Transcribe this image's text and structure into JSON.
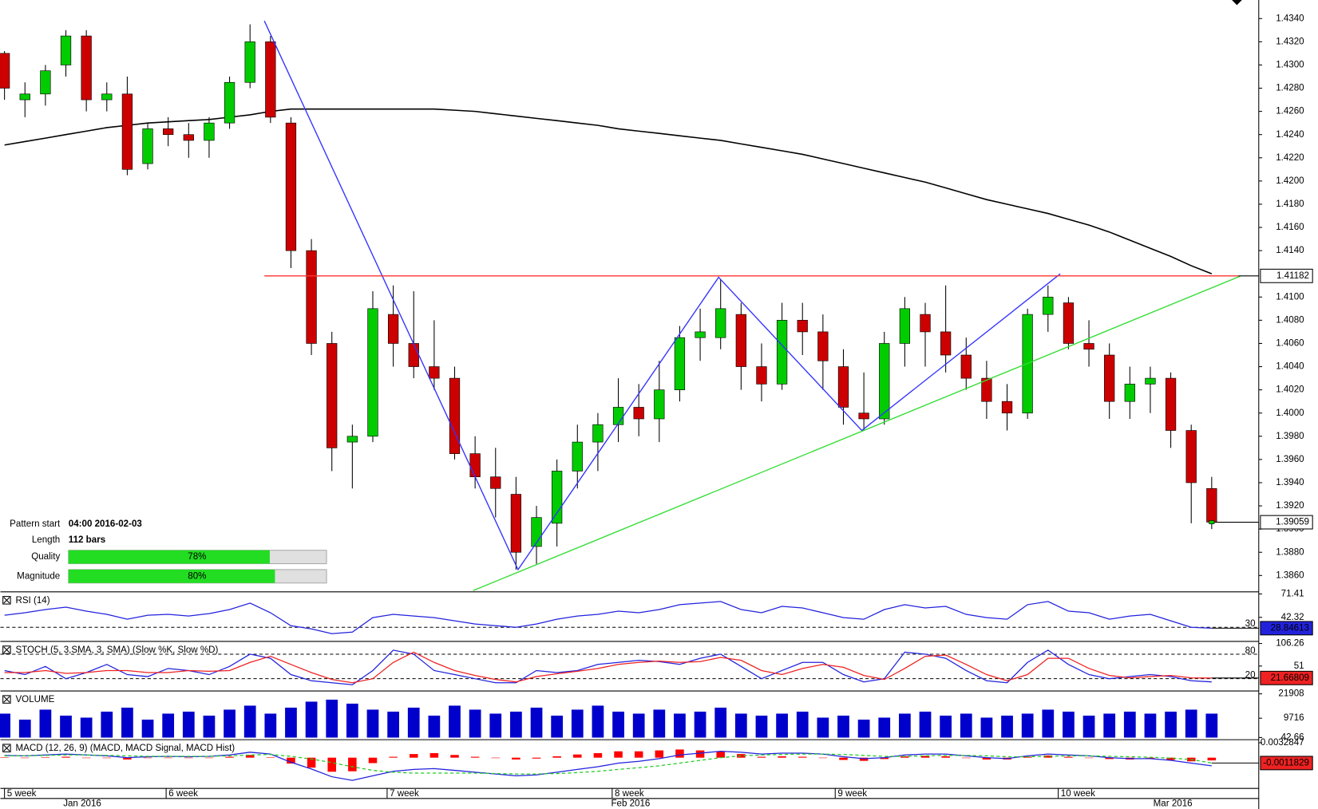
{
  "chart_data": [
    {
      "type": "candlestick",
      "xlim": [
        -0.2,
        61.3
      ],
      "ylim": [
        1.3847,
        1.4356
      ],
      "yticks": [
        {
          "value": 1.386,
          "label": "1.3860"
        },
        {
          "value": 1.388,
          "label": "1.3880"
        },
        {
          "value": 1.39,
          "label": "1.3900"
        },
        {
          "value": 1.392,
          "label": "1.3920"
        },
        {
          "value": 1.394,
          "label": "1.3940"
        },
        {
          "value": 1.396,
          "label": "1.3960"
        },
        {
          "value": 1.398,
          "label": "1.3980"
        },
        {
          "value": 1.4,
          "label": "1.4000"
        },
        {
          "value": 1.402,
          "label": "1.4020"
        },
        {
          "value": 1.404,
          "label": "1.4040"
        },
        {
          "value": 1.406,
          "label": "1.4060"
        },
        {
          "value": 1.408,
          "label": "1.4080"
        },
        {
          "value": 1.41,
          "label": "1.4100"
        },
        {
          "value": 1.414,
          "label": "1.4140"
        },
        {
          "value": 1.416,
          "label": "1.4160"
        },
        {
          "value": 1.418,
          "label": "1.4180"
        },
        {
          "value": 1.42,
          "label": "1.4200"
        },
        {
          "value": 1.422,
          "label": "1.4220"
        },
        {
          "value": 1.424,
          "label": "1.4240"
        },
        {
          "value": 1.426,
          "label": "1.4260"
        },
        {
          "value": 1.428,
          "label": "1.4280"
        },
        {
          "value": 1.43,
          "label": "1.4300"
        },
        {
          "value": 1.432,
          "label": "1.4320"
        },
        {
          "value": 1.434,
          "label": "1.4340"
        }
      ],
      "xticks": [
        {
          "value": 0,
          "label": "5 week"
        },
        {
          "value": 7.9,
          "label": "6 week"
        },
        {
          "value": 18.7,
          "label": "7 week"
        },
        {
          "value": 29.7,
          "label": "8 week"
        },
        {
          "value": 40.6,
          "label": "9 week"
        },
        {
          "value": 51.5,
          "label": "10 week"
        }
      ],
      "months": [
        {
          "value": 3.8,
          "label": "Jan 2016"
        },
        {
          "value": 30.6,
          "label": "Feb 2016"
        },
        {
          "value": 57.1,
          "label": "Mar 2016"
        }
      ],
      "up_color": "#00cc00",
      "down_color": "#cc0000",
      "candles": [
        [
          1.431,
          1.4312,
          1.427,
          1.428
        ],
        [
          1.427,
          1.4285,
          1.4255,
          1.4275
        ],
        [
          1.4275,
          1.43,
          1.4265,
          1.4295
        ],
        [
          1.43,
          1.433,
          1.429,
          1.4325
        ],
        [
          1.4325,
          1.433,
          1.426,
          1.427
        ],
        [
          1.427,
          1.4285,
          1.426,
          1.4275
        ],
        [
          1.4275,
          1.429,
          1.4205,
          1.421
        ],
        [
          1.4215,
          1.425,
          1.421,
          1.4245
        ],
        [
          1.4245,
          1.4255,
          1.423,
          1.424
        ],
        [
          1.424,
          1.425,
          1.422,
          1.4235
        ],
        [
          1.4235,
          1.4255,
          1.422,
          1.425
        ],
        [
          1.425,
          1.429,
          1.4245,
          1.4285
        ],
        [
          1.4285,
          1.4335,
          1.428,
          1.432
        ],
        [
          1.432,
          1.4325,
          1.425,
          1.4255
        ],
        [
          1.425,
          1.4255,
          1.4125,
          1.414
        ],
        [
          1.414,
          1.415,
          1.405,
          1.406
        ],
        [
          1.406,
          1.407,
          1.395,
          1.397
        ],
        [
          1.3975,
          1.399,
          1.3935,
          1.398
        ],
        [
          1.398,
          1.4105,
          1.3975,
          1.409
        ],
        [
          1.4085,
          1.411,
          1.404,
          1.406
        ],
        [
          1.406,
          1.4105,
          1.403,
          1.404
        ],
        [
          1.404,
          1.408,
          1.402,
          1.403
        ],
        [
          1.403,
          1.404,
          1.396,
          1.3965
        ],
        [
          1.3965,
          1.398,
          1.3935,
          1.3945
        ],
        [
          1.3945,
          1.397,
          1.391,
          1.3935
        ],
        [
          1.393,
          1.3945,
          1.3865,
          1.388
        ],
        [
          1.3885,
          1.392,
          1.387,
          1.391
        ],
        [
          1.3905,
          1.396,
          1.3885,
          1.395
        ],
        [
          1.395,
          1.399,
          1.3935,
          1.3975
        ],
        [
          1.3975,
          1.4,
          1.395,
          1.399
        ],
        [
          1.399,
          1.403,
          1.3975,
          1.4005
        ],
        [
          1.4005,
          1.4025,
          1.398,
          1.3995
        ],
        [
          1.3995,
          1.4045,
          1.3975,
          1.402
        ],
        [
          1.402,
          1.4075,
          1.401,
          1.4065
        ],
        [
          1.4065,
          1.409,
          1.4045,
          1.407
        ],
        [
          1.4065,
          1.4115,
          1.4055,
          1.409
        ],
        [
          1.4085,
          1.4095,
          1.402,
          1.404
        ],
        [
          1.404,
          1.406,
          1.401,
          1.4025
        ],
        [
          1.4025,
          1.4095,
          1.402,
          1.408
        ],
        [
          1.408,
          1.4095,
          1.405,
          1.407
        ],
        [
          1.407,
          1.4085,
          1.402,
          1.4045
        ],
        [
          1.404,
          1.4055,
          1.399,
          1.4005
        ],
        [
          1.4,
          1.4035,
          1.3985,
          1.3995
        ],
        [
          1.3995,
          1.407,
          1.399,
          1.406
        ],
        [
          1.406,
          1.41,
          1.404,
          1.409
        ],
        [
          1.4085,
          1.4095,
          1.404,
          1.407
        ],
        [
          1.407,
          1.411,
          1.4035,
          1.405
        ],
        [
          1.405,
          1.4065,
          1.402,
          1.403
        ],
        [
          1.403,
          1.4045,
          1.3995,
          1.401
        ],
        [
          1.401,
          1.4025,
          1.3985,
          1.4
        ],
        [
          1.4,
          1.409,
          1.3995,
          1.4085
        ],
        [
          1.4085,
          1.411,
          1.407,
          1.41
        ],
        [
          1.4095,
          1.41,
          1.4055,
          1.406
        ],
        [
          1.406,
          1.408,
          1.404,
          1.4055
        ],
        [
          1.405,
          1.406,
          1.3995,
          1.401
        ],
        [
          1.401,
          1.404,
          1.3995,
          1.4025
        ],
        [
          1.4025,
          1.404,
          1.4,
          1.403
        ],
        [
          1.403,
          1.4035,
          1.397,
          1.3985
        ],
        [
          1.3985,
          1.399,
          1.3905,
          1.394
        ],
        [
          1.3935,
          1.3945,
          1.39,
          1.3906
        ]
      ],
      "ma": {
        "color": "#000000",
        "values": [
          1.4231,
          1.4234,
          1.4237,
          1.424,
          1.4243,
          1.4246,
          1.4248,
          1.425,
          1.4251,
          1.4252,
          1.4253,
          1.4255,
          1.4257,
          1.426,
          1.4262,
          1.4262,
          1.4262,
          1.4262,
          1.4262,
          1.4262,
          1.4262,
          1.4262,
          1.4261,
          1.426,
          1.4258,
          1.4256,
          1.4254,
          1.4252,
          1.425,
          1.4248,
          1.4245,
          1.4243,
          1.4241,
          1.4239,
          1.4237,
          1.4235,
          1.4232,
          1.4229,
          1.4226,
          1.4223,
          1.4219,
          1.4215,
          1.4211,
          1.4207,
          1.4203,
          1.4199,
          1.4194,
          1.4189,
          1.4184,
          1.418,
          1.4176,
          1.4172,
          1.4167,
          1.4162,
          1.4156,
          1.4149,
          1.4142,
          1.4135,
          1.4127,
          1.412
        ]
      },
      "zigzag": {
        "color": "#3333ff",
        "x": [
          12.7,
          25.1,
          34.9,
          41.9,
          51.6
        ],
        "y": [
          1.4338,
          1.3865,
          1.4117,
          1.3985,
          1.412
        ]
      },
      "support": {
        "color": "#33dd33",
        "x": [
          22.9,
          60.4
        ],
        "y": [
          1.3847,
          1.4118
        ]
      },
      "resistance": {
        "color": "#ff3333",
        "x": [
          12.7,
          60.3
        ],
        "value": 1.41182
      },
      "last_price": 1.39059,
      "info": [
        {
          "label": "Pattern start",
          "text": "04:00 2016-02-03"
        },
        {
          "label": "Length",
          "text": "112 bars"
        },
        {
          "label": "Quality",
          "value": 78,
          "value_label": "78%"
        },
        {
          "label": "Magnitude",
          "value": 80,
          "value_label": "80%"
        }
      ]
    },
    {
      "type": "line",
      "title": "RSI (14)",
      "ylim": [
        14,
        71.41
      ],
      "yticks": [
        71.41,
        42.32
      ],
      "levels": [
        30
      ],
      "last_label": 28.84613,
      "last_color": "#2222dd",
      "series": [
        {
          "color": "#2222dd",
          "values": [
            45,
            48,
            52,
            55,
            50,
            46,
            40,
            45,
            46,
            44,
            47,
            52,
            60,
            48,
            32,
            28,
            22,
            24,
            42,
            46,
            44,
            42,
            38,
            34,
            32,
            30,
            34,
            40,
            44,
            46,
            50,
            48,
            52,
            58,
            60,
            62,
            52,
            48,
            56,
            54,
            48,
            42,
            40,
            52,
            58,
            54,
            56,
            46,
            42,
            40,
            58,
            62,
            50,
            48,
            40,
            44,
            46,
            38,
            30,
            28.84613
          ]
        }
      ]
    },
    {
      "type": "line",
      "title": "STOCH (5, 3,SMA, 3, SMA) (Slow %K, Slow %D)",
      "ylim": [
        -5,
        106.26
      ],
      "yticks": [
        106.26,
        51
      ],
      "levels": [
        80,
        20
      ],
      "last_label": 21.66809,
      "last_color": "#ee2222",
      "series": [
        {
          "color": "#2222dd",
          "values": [
            40,
            30,
            50,
            20,
            35,
            55,
            30,
            25,
            45,
            40,
            30,
            50,
            80,
            70,
            30,
            15,
            10,
            5,
            40,
            90,
            80,
            40,
            30,
            20,
            10,
            10,
            40,
            35,
            40,
            55,
            60,
            65,
            62,
            55,
            70,
            80,
            50,
            20,
            40,
            60,
            60,
            30,
            12,
            20,
            85,
            80,
            70,
            40,
            15,
            10,
            60,
            90,
            55,
            30,
            20,
            25,
            30,
            25,
            15,
            12
          ]
        },
        {
          "color": "#ee2222",
          "values": [
            35,
            35,
            40,
            33,
            35,
            40,
            40,
            35,
            35,
            40,
            38,
            40,
            60,
            75,
            55,
            35,
            18,
            10,
            20,
            60,
            85,
            60,
            40,
            28,
            18,
            12,
            25,
            32,
            38,
            45,
            55,
            60,
            63,
            60,
            62,
            72,
            65,
            40,
            30,
            45,
            55,
            48,
            28,
            18,
            45,
            75,
            78,
            55,
            30,
            15,
            30,
            70,
            70,
            45,
            28,
            22,
            25,
            28,
            22,
            21.66809
          ]
        }
      ]
    },
    {
      "type": "bar",
      "title": "VOLUME",
      "ylim": [
        0,
        22300
      ],
      "yticks": [
        21908,
        9716,
        42.66
      ],
      "color": "#0000cc",
      "values": [
        12000,
        9000,
        14000,
        11000,
        10000,
        13000,
        15000,
        9000,
        12000,
        13000,
        11000,
        14000,
        16000,
        12000,
        15000,
        18000,
        19000,
        17000,
        14000,
        13000,
        15000,
        11000,
        16000,
        14000,
        12000,
        13000,
        15000,
        11000,
        14000,
        16000,
        13000,
        12000,
        14000,
        12000,
        13000,
        15000,
        12000,
        11000,
        12000,
        13000,
        10000,
        11000,
        9000,
        10000,
        12000,
        13000,
        11000,
        12000,
        10000,
        11000,
        12000,
        14000,
        13000,
        11000,
        12000,
        13000,
        12000,
        13000,
        14000,
        12000
      ]
    },
    {
      "type": "line",
      "title": "MACD (12, 26, 9) (MACD, MACD Signal, MACD Hist)",
      "ylim": [
        -0.0065,
        0.0035
      ],
      "yticks": [
        0.0032847
      ],
      "levels": [],
      "last_label": -0.0011829,
      "last_color": "#ee2222",
      "hist": {
        "color": "#ff0000",
        "values": [
          0.0001,
          0,
          0.0001,
          0.0002,
          0,
          -0.0001,
          -0.0004,
          -0.0001,
          0,
          -0.0001,
          0,
          0.0002,
          0.0006,
          0.0001,
          -0.0013,
          -0.0022,
          -0.0031,
          -0.003,
          -0.0012,
          0.0002,
          0.0008,
          0.001,
          0.0006,
          0.0002,
          -0.0001,
          -0.0004,
          -0.0002,
          0.0003,
          0.0007,
          0.001,
          0.0014,
          0.0014,
          0.0016,
          0.0018,
          0.0016,
          0.0014,
          0.0008,
          0.0002,
          0.0003,
          0.0002,
          0,
          -0.0005,
          -0.0007,
          -0.0003,
          0.0003,
          0.0004,
          0.0003,
          -0.0001,
          -0.0004,
          -0.0004,
          0.0002,
          0.0005,
          0.0002,
          0,
          -0.0003,
          -0.0004,
          -0.0003,
          -0.0005,
          -0.0008,
          -0.0006
        ]
      },
      "series": [
        {
          "color": "#2222dd",
          "values": [
            0.0005,
            0.0004,
            0.0006,
            0.0008,
            0.0006,
            0.0004,
            0,
            0.0002,
            0.0003,
            0.0002,
            0.0003,
            0.0006,
            0.0012,
            0.0008,
            -0.001,
            -0.0025,
            -0.0042,
            -0.005,
            -0.004,
            -0.003,
            -0.0026,
            -0.0024,
            -0.0028,
            -0.0032,
            -0.0036,
            -0.004,
            -0.0038,
            -0.0032,
            -0.0026,
            -0.002,
            -0.0012,
            -0.0008,
            -0.0002,
            0.0006,
            0.001,
            0.0014,
            0.0012,
            0.0008,
            0.001,
            0.001,
            0.0008,
            0.0002,
            -0.0002,
            0,
            0.0006,
            0.0008,
            0.0008,
            0.0004,
            0,
            -0.0002,
            0.0004,
            0.0008,
            0.0006,
            0.0004,
            0,
            -0.0002,
            -0.0002,
            -0.0006,
            -0.0012,
            -0.0018
          ]
        },
        {
          "color": "#22cc22",
          "dashed": true,
          "values": [
            0.0004,
            0.0004,
            0.0005,
            0.0006,
            0.0006,
            0.0005,
            0.0004,
            0.0003,
            0.0003,
            0.0003,
            0.0003,
            0.0004,
            0.0006,
            0.0007,
            0.0003,
            -0.0003,
            -0.0011,
            -0.002,
            -0.0028,
            -0.0032,
            -0.0034,
            -0.0034,
            -0.0034,
            -0.0034,
            -0.0035,
            -0.0036,
            -0.0036,
            -0.0035,
            -0.0033,
            -0.003,
            -0.0026,
            -0.0022,
            -0.0018,
            -0.0012,
            -0.0006,
            0,
            0.0004,
            0.0006,
            0.0007,
            0.0008,
            0.0008,
            0.0007,
            0.0005,
            0.0003,
            0.0003,
            0.0004,
            0.0005,
            0.0005,
            0.0004,
            0.0002,
            0.0002,
            0.0003,
            0.0004,
            0.0004,
            0.0003,
            0.0002,
            0.0001,
            -0.0001,
            -0.0004,
            -0.0011829
          ]
        }
      ]
    }
  ]
}
